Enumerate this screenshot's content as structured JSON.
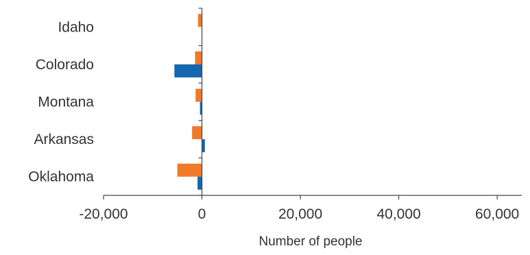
{
  "chart_data": {
    "type": "bar",
    "orientation": "horizontal",
    "categories": [
      "Idaho",
      "Colorado",
      "Montana",
      "Arkansas",
      "Oklahoma"
    ],
    "series": [
      {
        "values": [
          -800,
          -1400,
          -1300,
          -2000,
          -5000
        ],
        "color": "#F07A2A"
      },
      {
        "values": [
          0,
          -5600,
          -400,
          600,
          -900
        ],
        "color": "#1666B0"
      }
    ],
    "xlabel": "Number of people",
    "xlim": [
      -20000,
      65000
    ],
    "xticks": [
      -20000,
      0,
      20000,
      40000,
      60000
    ],
    "xtick_labels": [
      "-20,000",
      "0",
      "20,000",
      "40,000",
      "60,000"
    ],
    "grid": false,
    "legend": "none"
  }
}
